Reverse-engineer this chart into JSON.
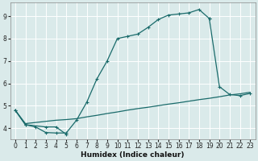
{
  "xlabel": "Humidex (Indice chaleur)",
  "bg_color": "#daeaea",
  "grid_color": "#ffffff",
  "line_color": "#1a6b6b",
  "xlim": [
    -0.5,
    23.5
  ],
  "ylim": [
    3.5,
    9.6
  ],
  "xticks": [
    0,
    1,
    2,
    3,
    4,
    5,
    6,
    7,
    8,
    9,
    10,
    11,
    12,
    13,
    14,
    15,
    16,
    17,
    18,
    19,
    20,
    21,
    22,
    23
  ],
  "yticks": [
    4,
    5,
    6,
    7,
    8,
    9
  ],
  "line1_x": [
    0,
    1,
    2,
    3,
    4,
    5,
    6,
    7,
    8,
    9,
    10,
    11,
    12,
    13,
    14,
    15,
    16,
    17,
    18,
    19
  ],
  "line1_y": [
    4.8,
    4.15,
    4.05,
    3.8,
    3.78,
    3.78,
    4.35,
    5.15,
    6.2,
    7.0,
    8.0,
    8.1,
    8.2,
    8.5,
    8.85,
    9.05,
    9.1,
    9.15,
    9.3,
    8.9
  ],
  "line2_x": [
    19,
    20,
    21,
    22,
    23
  ],
  "line2_y": [
    8.9,
    5.85,
    5.5,
    5.45,
    5.55
  ],
  "line3_x": [
    0,
    1,
    3,
    4,
    5
  ],
  "line3_y": [
    4.8,
    4.15,
    4.05,
    4.05,
    3.72
  ],
  "line4_x": [
    0,
    1,
    2,
    3,
    4,
    5,
    6,
    7,
    8,
    9,
    10,
    11,
    12,
    13,
    14,
    15,
    16,
    17,
    18,
    19,
    20,
    21,
    22,
    23
  ],
  "line4_y": [
    4.8,
    4.2,
    4.25,
    4.3,
    4.35,
    4.38,
    4.42,
    4.5,
    4.57,
    4.65,
    4.72,
    4.8,
    4.87,
    4.93,
    5.0,
    5.07,
    5.13,
    5.2,
    5.27,
    5.33,
    5.4,
    5.48,
    5.53,
    5.6
  ]
}
